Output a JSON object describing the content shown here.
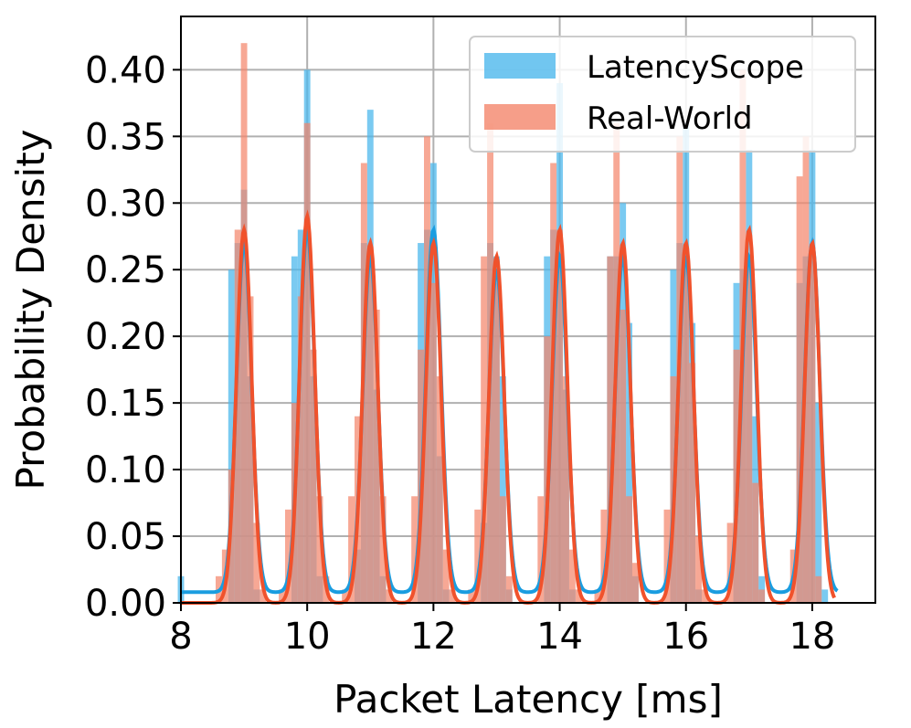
{
  "chart_data": {
    "type": "bar",
    "xlabel": "Packet Latency [ms]",
    "ylabel": "Probability Density",
    "xlim": [
      8,
      19
    ],
    "ylim": [
      0,
      0.44
    ],
    "xticks": [
      "8",
      "10",
      "12",
      "14",
      "16",
      "18"
    ],
    "yticks": [
      "0.00",
      "0.05",
      "0.10",
      "0.15",
      "0.20",
      "0.25",
      "0.30",
      "0.35",
      "0.40"
    ],
    "grid": true,
    "legend_position": "top-right",
    "bin_width": 0.1,
    "series": [
      {
        "name": "LatencyScope",
        "kind": "histogram",
        "color": "#4db8ec",
        "bins": [
          [
            8.0,
            0.02
          ],
          [
            8.8,
            0.25
          ],
          [
            8.9,
            0.27
          ],
          [
            9.0,
            0.31
          ],
          [
            9.1,
            0.17
          ],
          [
            9.2,
            0.01
          ],
          [
            9.8,
            0.26
          ],
          [
            9.9,
            0.28
          ],
          [
            10.0,
            0.4
          ],
          [
            10.1,
            0.17
          ],
          [
            10.2,
            0.02
          ],
          [
            10.8,
            0.04
          ],
          [
            10.9,
            0.27
          ],
          [
            11.0,
            0.37
          ],
          [
            11.1,
            0.16
          ],
          [
            11.2,
            0.02
          ],
          [
            11.8,
            0.27
          ],
          [
            11.9,
            0.28
          ],
          [
            12.0,
            0.33
          ],
          [
            12.1,
            0.11
          ],
          [
            12.2,
            0.01
          ],
          [
            12.8,
            0.06
          ],
          [
            12.9,
            0.27
          ],
          [
            13.0,
            0.26
          ],
          [
            13.1,
            0.17
          ],
          [
            13.2,
            0.01
          ],
          [
            13.8,
            0.26
          ],
          [
            13.9,
            0.28
          ],
          [
            14.0,
            0.39
          ],
          [
            14.1,
            0.16
          ],
          [
            14.2,
            0.01
          ],
          [
            14.8,
            0.26
          ],
          [
            14.9,
            0.26
          ],
          [
            15.0,
            0.3
          ],
          [
            15.1,
            0.21
          ],
          [
            15.2,
            0.02
          ],
          [
            15.8,
            0.25
          ],
          [
            15.9,
            0.27
          ],
          [
            16.0,
            0.36
          ],
          [
            16.1,
            0.21
          ],
          [
            16.2,
            0.01
          ],
          [
            16.8,
            0.24
          ],
          [
            16.9,
            0.25
          ],
          [
            17.0,
            0.34
          ],
          [
            17.1,
            0.14
          ],
          [
            17.2,
            0.02
          ],
          [
            17.8,
            0.24
          ],
          [
            17.9,
            0.26
          ],
          [
            18.0,
            0.34
          ],
          [
            18.1,
            0.15
          ],
          [
            18.2,
            0.01
          ]
        ]
      },
      {
        "name": "Real-World",
        "kind": "histogram",
        "color": "#f4866c",
        "bins": [
          [
            8.6,
            0.02
          ],
          [
            8.7,
            0.04
          ],
          [
            8.8,
            0.1
          ],
          [
            8.9,
            0.28
          ],
          [
            9.0,
            0.42
          ],
          [
            9.1,
            0.23
          ],
          [
            9.2,
            0.06
          ],
          [
            9.3,
            0.01
          ],
          [
            9.6,
            0.01
          ],
          [
            9.7,
            0.07
          ],
          [
            9.8,
            0.15
          ],
          [
            9.9,
            0.23
          ],
          [
            10.0,
            0.36
          ],
          [
            10.1,
            0.19
          ],
          [
            10.2,
            0.08
          ],
          [
            10.3,
            0.02
          ],
          [
            10.6,
            0.01
          ],
          [
            10.7,
            0.08
          ],
          [
            10.8,
            0.14
          ],
          [
            10.9,
            0.33
          ],
          [
            11.0,
            0.26
          ],
          [
            11.1,
            0.22
          ],
          [
            11.2,
            0.08
          ],
          [
            11.3,
            0.01
          ],
          [
            11.7,
            0.08
          ],
          [
            11.8,
            0.19
          ],
          [
            11.9,
            0.35
          ],
          [
            12.0,
            0.24
          ],
          [
            12.1,
            0.17
          ],
          [
            12.2,
            0.04
          ],
          [
            12.3,
            0.01
          ],
          [
            12.6,
            0.01
          ],
          [
            12.7,
            0.07
          ],
          [
            12.8,
            0.26
          ],
          [
            12.9,
            0.36
          ],
          [
            13.0,
            0.24
          ],
          [
            13.1,
            0.08
          ],
          [
            13.2,
            0.02
          ],
          [
            13.7,
            0.08
          ],
          [
            13.8,
            0.2
          ],
          [
            13.9,
            0.33
          ],
          [
            14.0,
            0.28
          ],
          [
            14.1,
            0.17
          ],
          [
            14.2,
            0.04
          ],
          [
            14.3,
            0.01
          ],
          [
            14.6,
            0.01
          ],
          [
            14.7,
            0.07
          ],
          [
            14.8,
            0.26
          ],
          [
            14.9,
            0.36
          ],
          [
            15.0,
            0.22
          ],
          [
            15.1,
            0.08
          ],
          [
            15.2,
            0.03
          ],
          [
            15.7,
            0.07
          ],
          [
            15.8,
            0.17
          ],
          [
            15.9,
            0.35
          ],
          [
            16.0,
            0.25
          ],
          [
            16.1,
            0.18
          ],
          [
            16.2,
            0.05
          ],
          [
            16.3,
            0.01
          ],
          [
            16.7,
            0.06
          ],
          [
            16.8,
            0.19
          ],
          [
            16.9,
            0.4
          ],
          [
            17.0,
            0.26
          ],
          [
            17.1,
            0.09
          ],
          [
            17.2,
            0.01
          ],
          [
            17.7,
            0.04
          ],
          [
            17.8,
            0.32
          ],
          [
            17.9,
            0.35
          ],
          [
            18.0,
            0.26
          ],
          [
            18.1,
            0.02
          ]
        ]
      },
      {
        "name": "LatencyScope KDE",
        "kind": "kde",
        "color": "#1a9de0",
        "peak_heights": [
          0.27,
          0.28,
          0.26,
          0.28,
          0.25,
          0.26,
          0.26,
          0.26,
          0.26,
          0.27
        ],
        "trough_height": 0.008
      },
      {
        "name": "Real-World KDE",
        "kind": "kde",
        "color": "#f0522c",
        "peak_heights": [
          0.28,
          0.29,
          0.27,
          0.27,
          0.26,
          0.28,
          0.27,
          0.27,
          0.28,
          0.27
        ],
        "trough_height": 0.0
      }
    ],
    "peak_centers": [
      9,
      10,
      11,
      12,
      13,
      14,
      15,
      16,
      17,
      18
    ],
    "kde_sigma": 0.12,
    "legend": [
      {
        "label": "LatencyScope",
        "color": "#4db8ec"
      },
      {
        "label": "Real-World",
        "color": "#f4866c"
      }
    ]
  }
}
